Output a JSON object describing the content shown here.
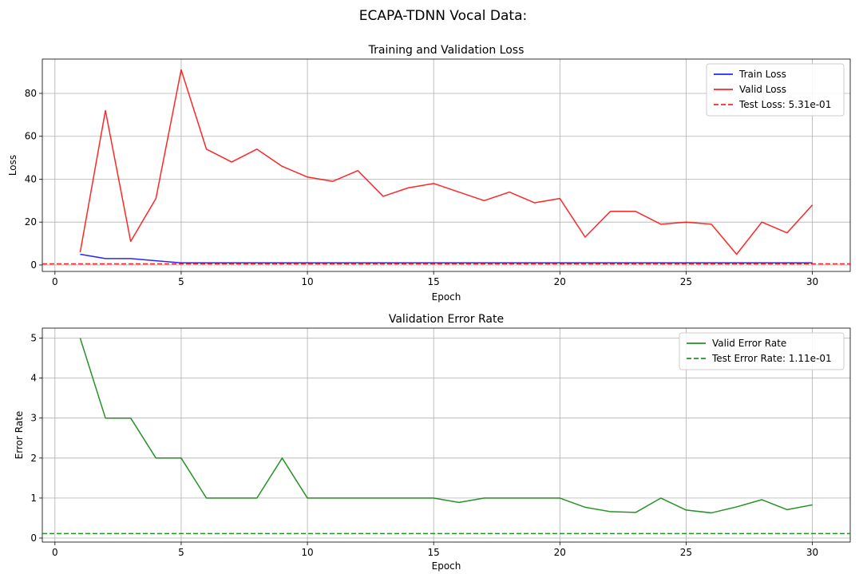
{
  "figure": {
    "suptitle": "ECAPA-TDNN Vocal Data:"
  },
  "chart_data": [
    {
      "type": "line",
      "title": "Training and Validation Loss",
      "xlabel": "Epoch",
      "ylabel": "Loss",
      "xlim": [
        -0.5,
        31.5
      ],
      "ylim": [
        -3,
        96
      ],
      "xticks": [
        0,
        5,
        10,
        15,
        20,
        25,
        30
      ],
      "xtick_labels": [
        "0",
        "5",
        "10",
        "15",
        "20",
        "25",
        "30"
      ],
      "yticks": [
        0,
        20,
        40,
        60,
        80
      ],
      "ytick_labels": [
        "0",
        "20",
        "40",
        "60",
        "80"
      ],
      "grid": true,
      "legend_position": "top-right",
      "x": [
        1,
        2,
        3,
        4,
        5,
        6,
        7,
        8,
        9,
        10,
        11,
        12,
        13,
        14,
        15,
        16,
        17,
        18,
        19,
        20,
        21,
        22,
        23,
        24,
        25,
        26,
        27,
        28,
        29,
        30
      ],
      "series": [
        {
          "name": "Train Loss",
          "color": "#0000ff",
          "style": "solid",
          "values": [
            5,
            3,
            3,
            2,
            1,
            1,
            1,
            1,
            1,
            1,
            1,
            1,
            1,
            1,
            1,
            1,
            1,
            1,
            1,
            1,
            1,
            1,
            1,
            1,
            1,
            1,
            1,
            1,
            1,
            1
          ]
        },
        {
          "name": "Valid Loss",
          "color": "#ff0000",
          "style": "solid",
          "values": [
            6,
            72,
            11,
            31,
            91,
            54,
            48,
            54,
            46,
            41,
            39,
            44,
            32,
            36,
            38,
            34,
            30,
            34,
            29,
            31,
            13,
            25,
            25,
            19,
            20,
            19,
            5,
            20,
            15,
            28
          ]
        }
      ],
      "hlines": [
        {
          "name": "Test Loss: 5.31e-01",
          "value": 0.531,
          "color": "#ff0000",
          "style": "dashed"
        }
      ]
    },
    {
      "type": "line",
      "title": "Validation Error Rate",
      "xlabel": "Epoch",
      "ylabel": "Error Rate",
      "xlim": [
        -0.5,
        31.5
      ],
      "ylim": [
        -0.1,
        5.25
      ],
      "xticks": [
        0,
        5,
        10,
        15,
        20,
        25,
        30
      ],
      "xtick_labels": [
        "0",
        "5",
        "10",
        "15",
        "20",
        "25",
        "30"
      ],
      "yticks": [
        0,
        1,
        2,
        3,
        4,
        5
      ],
      "ytick_labels": [
        "0",
        "1",
        "2",
        "3",
        "4",
        "5"
      ],
      "grid": true,
      "legend_position": "top-right",
      "x": [
        1,
        2,
        3,
        4,
        5,
        6,
        7,
        8,
        9,
        10,
        11,
        12,
        13,
        14,
        15,
        16,
        17,
        18,
        19,
        20,
        21,
        22,
        23,
        24,
        25,
        26,
        27,
        28,
        29,
        30
      ],
      "series": [
        {
          "name": "Valid Error Rate",
          "color": "#008000",
          "style": "solid",
          "values": [
            5,
            3,
            3,
            2,
            2,
            1,
            1,
            1,
            2,
            1,
            1,
            1,
            1,
            1,
            1,
            0.89,
            1,
            1,
            1,
            1,
            0.77,
            0.66,
            0.64,
            1,
            0.7,
            0.63,
            0.78,
            0.96,
            0.71,
            0.83
          ]
        }
      ],
      "hlines": [
        {
          "name": "Test Error Rate: 1.11e-01",
          "value": 0.111,
          "color": "#008000",
          "style": "dashed"
        }
      ]
    }
  ]
}
